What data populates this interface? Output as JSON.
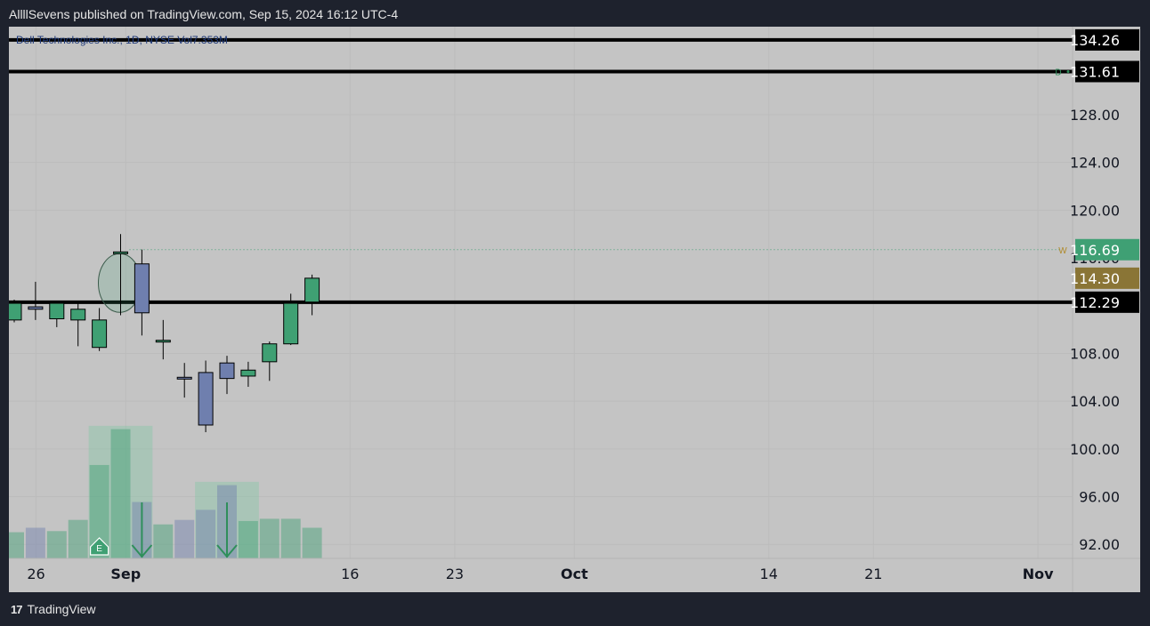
{
  "header": {
    "title": "AllllSevens published on TradingView.com, Sep 15, 2024 16:12 UTC-4"
  },
  "footer": {
    "brand": "TradingView",
    "logo": "17"
  },
  "legend": {
    "symbol_line": "Dell Technologies Inc., 1D, NYSE  Vol7.353M"
  },
  "colors": {
    "up": "#3fa073",
    "down": "#6f7fae",
    "level_line": "#000000",
    "last_price_tag": "#3fa074",
    "tag_114": "#8a7536",
    "tag_dark": "#000000"
  },
  "chart_data": {
    "type": "candlestick",
    "title": "Dell Technologies Inc., 1D, NYSE",
    "ylim": [
      90.0,
      136.0
    ],
    "y_ticks": [
      128.0,
      124.0,
      120.0,
      108.0,
      104.0,
      100.0,
      96.0,
      92.0
    ],
    "y_tick_labels": [
      "128.00",
      "124.00",
      "120.00",
      "108.00",
      "104.00",
      "100.00",
      "96.00",
      "92.00"
    ],
    "x_tick_labels": [
      "26",
      "Sep",
      "16",
      "23",
      "Oct",
      "14",
      "21",
      "Nov"
    ],
    "x_tick_dates": [
      "2024-08-26",
      "2024-09-01",
      "2024-09-16",
      "2024-09-23",
      "2024-10-01",
      "2024-10-14",
      "2024-10-21",
      "2024-11-01"
    ],
    "candles": [
      {
        "date": "2024-08-23",
        "open": 110.8,
        "high": 112.5,
        "low": 110.6,
        "close": 112.2,
        "volume": 2.1
      },
      {
        "date": "2024-08-26",
        "open": 111.9,
        "high": 114.0,
        "low": 110.8,
        "close": 111.7,
        "volume": 2.5
      },
      {
        "date": "2024-08-27",
        "open": 110.9,
        "high": 112.4,
        "low": 110.2,
        "close": 112.2,
        "volume": 2.2
      },
      {
        "date": "2024-08-28",
        "open": 110.8,
        "high": 112.4,
        "low": 108.6,
        "close": 111.7,
        "volume": 3.2
      },
      {
        "date": "2024-08-29",
        "open": 108.5,
        "high": 111.8,
        "low": 108.2,
        "close": 110.8,
        "volume": 8.1
      },
      {
        "date": "2024-08-30",
        "open": 116.5,
        "high": 118.0,
        "low": 111.2,
        "close": 116.5,
        "volume": 11.3
      },
      {
        "date": "2024-09-03",
        "open": 115.5,
        "high": 116.7,
        "low": 109.5,
        "close": 111.4,
        "volume": 4.8
      },
      {
        "date": "2024-09-04",
        "open": 109.1,
        "high": 110.8,
        "low": 107.5,
        "close": 109.1,
        "volume": 2.8
      },
      {
        "date": "2024-09-05",
        "open": 106.0,
        "high": 107.2,
        "low": 104.3,
        "close": 105.9,
        "volume": 3.2
      },
      {
        "date": "2024-09-06",
        "open": 106.4,
        "high": 107.4,
        "low": 101.4,
        "close": 102.0,
        "volume": 4.1
      },
      {
        "date": "2024-09-09",
        "open": 107.2,
        "high": 107.8,
        "low": 104.6,
        "close": 105.9,
        "volume": 6.3
      },
      {
        "date": "2024-09-10",
        "open": 106.1,
        "high": 107.3,
        "low": 105.2,
        "close": 106.6,
        "volume": 3.1
      },
      {
        "date": "2024-09-11",
        "open": 107.3,
        "high": 109.0,
        "low": 105.7,
        "close": 108.8,
        "volume": 3.3
      },
      {
        "date": "2024-09-12",
        "open": 108.8,
        "high": 113.0,
        "low": 108.7,
        "close": 112.2,
        "volume": 3.3
      },
      {
        "date": "2024-09-13",
        "open": 112.3,
        "high": 114.6,
        "low": 111.2,
        "close": 114.3,
        "volume": 2.5
      }
    ],
    "volume_unit": "M",
    "volume_shading": [
      {
        "from": "2024-08-29",
        "to": "2024-09-03",
        "level": 11.6
      },
      {
        "from": "2024-09-06",
        "to": "2024-09-10",
        "level": 6.6
      }
    ],
    "horizontal_levels": [
      {
        "price": 134.26,
        "label": "134.26",
        "tag": "dark"
      },
      {
        "price": 131.61,
        "label": "131.61",
        "tag": "dark",
        "marker": "D"
      },
      {
        "price": 112.29,
        "label": "112.29",
        "tag": "dark"
      }
    ],
    "dotted_level": {
      "price": 116.69,
      "label": "116.69",
      "marker": "W"
    },
    "price_tags": [
      {
        "price": 114.3,
        "label": "114.30"
      }
    ],
    "hidden_tick_label": "116.00",
    "annotations": {
      "ellipse_on": "2024-08-30",
      "earnings_marker": {
        "date": "2024-08-29",
        "text": "E"
      },
      "down_arrows": [
        "2024-09-03",
        "2024-09-09"
      ]
    }
  }
}
